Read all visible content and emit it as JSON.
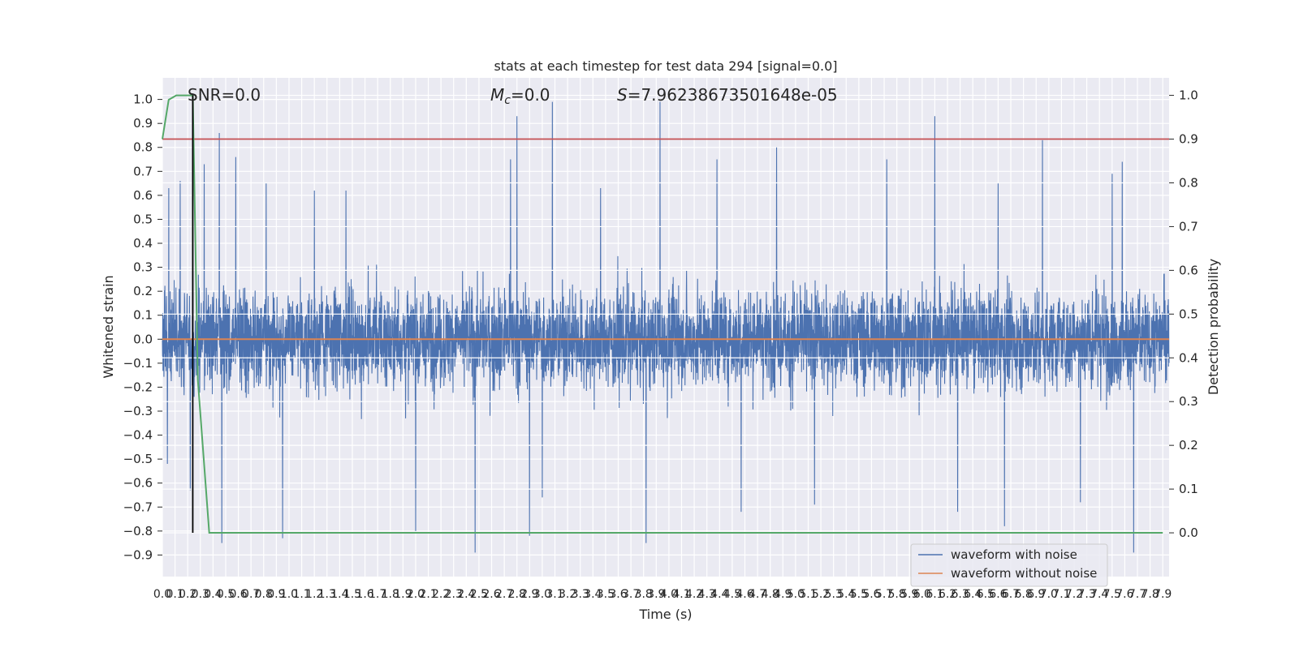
{
  "chart_data": {
    "type": "line",
    "title": "stats at each timestep for test data 294 [signal=0.0]",
    "xlabel": "Time (s)",
    "ylabel_left": "Whitened strain",
    "ylabel_right": "Detection probability",
    "xlim": [
      0.0,
      7.95
    ],
    "ylim_left": [
      -0.99,
      1.09
    ],
    "ylim_right": [
      -0.1,
      1.04
    ],
    "x_ticks": [
      0.0,
      0.1,
      0.2,
      0.3,
      0.4,
      0.5,
      0.6,
      0.7,
      0.8,
      0.9,
      1.0,
      1.1,
      1.2,
      1.3,
      1.4,
      1.5,
      1.6,
      1.7,
      1.8,
      1.9,
      2.0,
      2.1,
      2.2,
      2.3,
      2.4,
      2.5,
      2.6,
      2.7,
      2.8,
      2.9,
      3.0,
      3.1,
      3.2,
      3.3,
      3.4,
      3.5,
      3.6,
      3.7,
      3.8,
      3.9,
      4.0,
      4.1,
      4.2,
      4.3,
      4.4,
      4.5,
      4.6,
      4.7,
      4.8,
      4.9,
      5.0,
      5.1,
      5.2,
      5.3,
      5.4,
      5.5,
      5.6,
      5.7,
      5.8,
      5.9,
      6.0,
      6.1,
      6.2,
      6.3,
      6.4,
      6.5,
      6.6,
      6.7,
      6.8,
      6.9,
      7.0,
      7.1,
      7.2,
      7.3,
      7.4,
      7.5,
      7.6,
      7.7,
      7.8,
      7.9
    ],
    "x_tick_labels": [
      "0.0",
      "0.1",
      "0.2",
      "0.3",
      "0.4",
      "0.5",
      "0.6",
      "0.7",
      "0.8",
      "0.9",
      "1.0",
      "1.1",
      "1.2",
      "1.3",
      "1.4",
      "1.5",
      "1.6",
      "1.7",
      "1.8",
      "1.9",
      "2.0",
      "2.1",
      "2.2",
      "2.3",
      "2.4",
      "2.5",
      "2.6",
      "2.7",
      "2.8",
      "2.9",
      "3.0",
      "3.1",
      "3.2",
      "3.3",
      "3.4",
      "3.5",
      "3.6",
      "3.7",
      "3.8",
      "3.9",
      "4.0",
      "4.1",
      "4.2",
      "4.3",
      "4.4",
      "4.5",
      "4.6",
      "4.7",
      "4.8",
      "4.9",
      "5.0",
      "5.1",
      "5.2",
      "5.3",
      "5.4",
      "5.5",
      "5.6",
      "5.7",
      "5.8",
      "5.9",
      "6.0",
      "6.1",
      "6.2",
      "6.3",
      "6.4",
      "6.5",
      "6.6",
      "6.7",
      "6.8",
      "6.9",
      "7.0",
      "7.1",
      "7.2",
      "7.3",
      "7.4",
      "7.5",
      "7.6",
      "7.7",
      "7.8",
      "7.9"
    ],
    "y_ticks_left": [
      -0.9,
      -0.8,
      -0.7,
      -0.6,
      -0.5,
      -0.4,
      -0.3,
      -0.2,
      -0.1,
      0.0,
      0.1,
      0.2,
      0.3,
      0.4,
      0.5,
      0.6,
      0.7,
      0.8,
      0.9,
      1.0
    ],
    "y_tick_labels_left": [
      "−0.9",
      "−0.8",
      "−0.7",
      "−0.6",
      "−0.5",
      "−0.4",
      "−0.3",
      "−0.2",
      "−0.1",
      "0.0",
      "0.1",
      "0.2",
      "0.3",
      "0.4",
      "0.5",
      "0.6",
      "0.7",
      "0.8",
      "0.9",
      "1.0"
    ],
    "y_ticks_right": [
      0.0,
      0.1,
      0.2,
      0.3,
      0.4,
      0.5,
      0.6,
      0.7,
      0.8,
      0.9,
      1.0
    ],
    "y_tick_labels_right": [
      "0.0",
      "0.1",
      "0.2",
      "0.3",
      "0.4",
      "0.5",
      "0.6",
      "0.7",
      "0.8",
      "0.9",
      "1.0"
    ],
    "grid": true,
    "legend_position": "lower-right",
    "annotations": {
      "snr": "SNR=0.0",
      "mc_symbol": "M",
      "mc_sub": "c",
      "mc_value": "=0.0",
      "s_symbol": "S",
      "s_value": "=7.96238673501648e-05"
    },
    "series": [
      {
        "name": "waveform with noise",
        "axis": "left",
        "color": "#4c72b0",
        "description_values": "dense noise, |strain| mostly within 0.4, peaks up to ~1.0 and down to ~-0.89",
        "peaks": [
          [
            0.05,
            0.63
          ],
          [
            0.14,
            0.66
          ],
          [
            0.22,
            0.74
          ],
          [
            0.24,
            0.98
          ],
          [
            0.33,
            0.73
          ],
          [
            0.45,
            0.86
          ],
          [
            0.58,
            0.76
          ],
          [
            0.82,
            0.65
          ],
          [
            1.2,
            0.62
          ],
          [
            1.45,
            0.62
          ],
          [
            2.75,
            0.75
          ],
          [
            2.8,
            0.93
          ],
          [
            3.08,
            0.99
          ],
          [
            3.46,
            0.63
          ],
          [
            3.93,
            0.99
          ],
          [
            4.38,
            0.75
          ],
          [
            4.85,
            0.8
          ],
          [
            5.72,
            0.75
          ],
          [
            6.1,
            0.93
          ],
          [
            6.6,
            0.65
          ],
          [
            6.95,
            0.83
          ],
          [
            7.5,
            0.69
          ],
          [
            7.58,
            0.74
          ]
        ],
        "troughs": [
          [
            0.04,
            -0.52
          ],
          [
            0.22,
            -0.63
          ],
          [
            0.47,
            -0.85
          ],
          [
            0.95,
            -0.83
          ],
          [
            2.0,
            -0.8
          ],
          [
            2.47,
            -0.89
          ],
          [
            2.9,
            -0.82
          ],
          [
            3.0,
            -0.66
          ],
          [
            3.82,
            -0.85
          ],
          [
            4.57,
            -0.72
          ],
          [
            5.15,
            -0.69
          ],
          [
            6.28,
            -0.72
          ],
          [
            6.65,
            -0.78
          ],
          [
            7.25,
            -0.68
          ],
          [
            7.67,
            -0.89
          ]
        ],
        "typical_amplitude": 0.35
      },
      {
        "name": "waveform without noise",
        "axis": "left",
        "color": "#dd8452",
        "x": [
          0.0,
          7.95
        ],
        "y": [
          0.0,
          0.0
        ]
      },
      {
        "name": "",
        "axis": "right",
        "color": "#55a868",
        "x": [
          0.0,
          0.05,
          0.11,
          0.24,
          0.28,
          0.37,
          7.9
        ],
        "y": [
          0.9,
          0.99,
          1.0,
          1.0,
          0.35,
          0.0,
          0.0
        ]
      },
      {
        "name": "",
        "axis": "right",
        "color": "#c44e52",
        "x": [
          0.0,
          7.95
        ],
        "y": [
          0.9,
          0.9
        ]
      }
    ],
    "vertical_line": {
      "x": 0.24,
      "color": "#000000",
      "ymin_right": 0.0,
      "ymax_right": 1.0
    }
  }
}
